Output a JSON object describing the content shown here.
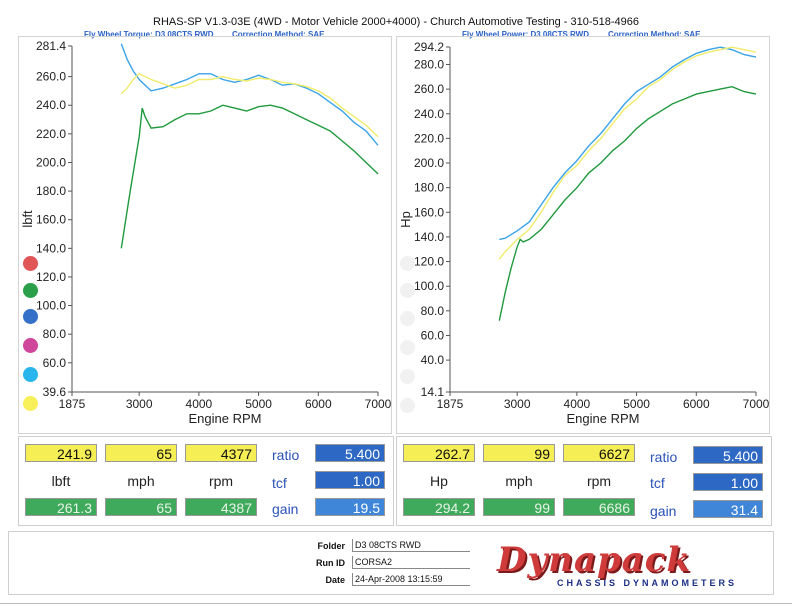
{
  "header": {
    "title": "RHAS-SP V1.3-03E  (4WD - Motor Vehicle 2000+4000) - Church Automotive Testing - 310-518-4966",
    "left_sub": "Fly Wheel Torque: D3 08CTS RWD",
    "left_method": "Correction Method: SAE",
    "right_sub": "Fly Wheel Power: D3 08CTS RWD",
    "right_method": "Correction Method: SAE"
  },
  "colors": {
    "green": "#1f9a3c",
    "blue": "#3aa3e8",
    "yellow": "#f0ec6a",
    "legend_red": "#e05555",
    "legend_green": "#2aa04a",
    "legend_blue": "#3470c8",
    "legend_pink": "#d0469a",
    "legend_cyan": "#29b6ec",
    "legend_yellow": "#f7f05a"
  },
  "chart_data": [
    {
      "type": "line",
      "xlabel": "Engine RPM",
      "ylabel": "lbft",
      "xlim": [
        1875,
        7000
      ],
      "ylim": [
        39.6,
        281.4
      ],
      "x_ticks": [
        "1875",
        "3000",
        "4000",
        "5000",
        "6000",
        "7000"
      ],
      "y_ticks": [
        "39.6",
        "60.0",
        "80.0",
        "100.0",
        "120.0",
        "140.0",
        "160.0",
        "180.0",
        "200.0",
        "220.0",
        "240.0",
        "260.0",
        "281.4"
      ],
      "grid": false,
      "series": [
        {
          "color": "green",
          "x": [
            2700,
            2850,
            3000,
            3050,
            3100,
            3200,
            3400,
            3600,
            3800,
            4000,
            4200,
            4400,
            4600,
            4800,
            5000,
            5200,
            5400,
            5600,
            5800,
            6000,
            6200,
            6400,
            6600,
            6800,
            7000
          ],
          "y": [
            140,
            180,
            218,
            238,
            232,
            224,
            225,
            230,
            234,
            234,
            236,
            240,
            238,
            236,
            239,
            240,
            238,
            234,
            230,
            226,
            222,
            215,
            208,
            200,
            192
          ]
        },
        {
          "color": "blue",
          "x": [
            2700,
            2800,
            2900,
            3000,
            3200,
            3400,
            3600,
            3800,
            4000,
            4200,
            4400,
            4600,
            4800,
            5000,
            5200,
            5400,
            5600,
            5800,
            6000,
            6200,
            6400,
            6600,
            6800,
            7000
          ],
          "y": [
            283,
            272,
            264,
            258,
            250,
            252,
            255,
            258,
            262,
            262,
            258,
            256,
            258,
            261,
            258,
            254,
            255,
            252,
            248,
            242,
            236,
            228,
            222,
            212
          ]
        },
        {
          "color": "yellow",
          "x": [
            2700,
            2800,
            2900,
            3000,
            3200,
            3400,
            3600,
            3800,
            4000,
            4200,
            4400,
            4600,
            4800,
            5000,
            5200,
            5400,
            5600,
            5800,
            6000,
            6200,
            6400,
            6600,
            6800,
            7000
          ],
          "y": [
            248,
            252,
            258,
            262,
            258,
            255,
            252,
            254,
            258,
            258,
            260,
            258,
            257,
            259,
            258,
            256,
            255,
            253,
            250,
            245,
            238,
            232,
            226,
            218
          ]
        }
      ]
    },
    {
      "type": "line",
      "xlabel": "Engine RPM",
      "ylabel": "Hp",
      "xlim": [
        1875,
        7000
      ],
      "ylim": [
        14.1,
        294.2
      ],
      "x_ticks": [
        "1875",
        "3000",
        "4000",
        "5000",
        "6000",
        "7000"
      ],
      "y_ticks": [
        "14.1",
        "40.0",
        "60.0",
        "80.0",
        "100.0",
        "120.0",
        "140.0",
        "160.0",
        "180.0",
        "200.0",
        "220.0",
        "240.0",
        "260.0",
        "280.0",
        "294.2"
      ],
      "grid": false,
      "series": [
        {
          "color": "green",
          "x": [
            2700,
            2800,
            2900,
            3000,
            3050,
            3100,
            3200,
            3400,
            3600,
            3800,
            4000,
            4200,
            4400,
            4600,
            4800,
            5000,
            5200,
            5400,
            5600,
            5800,
            6000,
            6200,
            6400,
            6600,
            6800,
            7000
          ],
          "y": [
            72,
            95,
            115,
            132,
            138,
            136,
            138,
            146,
            158,
            170,
            180,
            192,
            200,
            210,
            218,
            228,
            236,
            242,
            248,
            252,
            256,
            258,
            260,
            262,
            258,
            256
          ]
        },
        {
          "color": "blue",
          "x": [
            2700,
            2800,
            3000,
            3200,
            3400,
            3600,
            3800,
            4000,
            4200,
            4400,
            4600,
            4800,
            5000,
            5200,
            5400,
            5600,
            5800,
            6000,
            6200,
            6400,
            6600,
            6800,
            7000
          ],
          "y": [
            138,
            139,
            145,
            152,
            166,
            180,
            192,
            202,
            214,
            224,
            236,
            248,
            258,
            264,
            270,
            278,
            284,
            289,
            292,
            294,
            292,
            288,
            286
          ]
        },
        {
          "color": "yellow",
          "x": [
            2700,
            2800,
            3000,
            3200,
            3400,
            3600,
            3800,
            4000,
            4200,
            4400,
            4600,
            4800,
            5000,
            5200,
            5400,
            5600,
            5800,
            6000,
            6200,
            6400,
            6600,
            6800,
            7000
          ],
          "y": [
            122,
            128,
            138,
            146,
            160,
            176,
            190,
            198,
            210,
            220,
            232,
            244,
            252,
            262,
            268,
            276,
            282,
            287,
            290,
            292,
            294,
            292,
            290
          ]
        }
      ]
    }
  ],
  "readout_left": {
    "row1": [
      "241.9",
      "65",
      "4377"
    ],
    "units": [
      "lbft",
      "mph",
      "rpm"
    ],
    "row3": [
      "261.3",
      "65",
      "4387"
    ],
    "side_labels": [
      "ratio",
      "tcf",
      "gain"
    ],
    "side_values": [
      "5.400",
      "1.00",
      "19.5"
    ]
  },
  "readout_right": {
    "row1": [
      "262.7",
      "99",
      "6627"
    ],
    "units": [
      "Hp",
      "mph",
      "rpm"
    ],
    "row3": [
      "294.2",
      "99",
      "6686"
    ],
    "side_labels": [
      "ratio",
      "tcf",
      "gain"
    ],
    "side_values": [
      "5.400",
      "1.00",
      "31.4"
    ]
  },
  "footer": {
    "folder_label": "Folder",
    "folder_value": "D3 08CTS RWD",
    "runid_label": "Run ID",
    "runid_value": "CORSA2",
    "date_label": "Date",
    "date_value": "24-Apr-2008   13:15:59",
    "logo_text": "Dynapack",
    "logo_sub": "CHASSIS DYNAMOMETERS"
  }
}
